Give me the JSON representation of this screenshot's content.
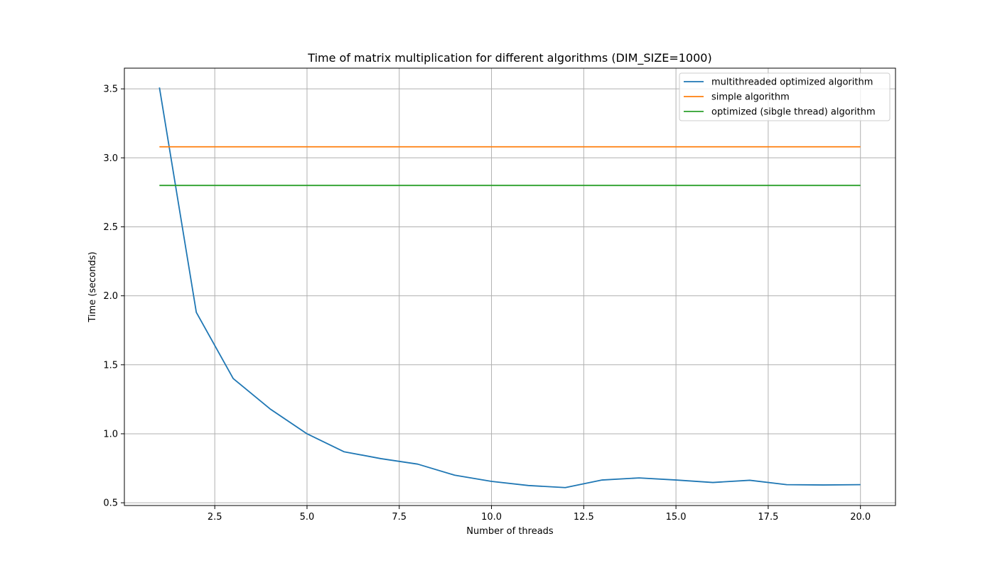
{
  "chart_data": {
    "type": "line",
    "title": "Time of matrix multiplication for different algorithms (DIM_SIZE=1000)",
    "xlabel": "Number of threads",
    "ylabel": "Time (seconds)",
    "xlim": [
      0.05,
      20.95
    ],
    "ylim": [
      0.48,
      3.65
    ],
    "x_ticks": [
      2.5,
      5.0,
      7.5,
      10.0,
      12.5,
      15.0,
      17.5,
      20.0
    ],
    "x_tick_labels": [
      "2.5",
      "5.0",
      "7.5",
      "10.0",
      "12.5",
      "15.0",
      "17.5",
      "20.0"
    ],
    "y_ticks": [
      0.5,
      1.0,
      1.5,
      2.0,
      2.5,
      3.0,
      3.5
    ],
    "y_tick_labels": [
      "0.5",
      "1.0",
      "1.5",
      "2.0",
      "2.5",
      "3.0",
      "3.5"
    ],
    "grid": true,
    "legend_position": "top-right",
    "x": [
      1,
      2,
      3,
      4,
      5,
      6,
      7,
      8,
      9,
      10,
      11,
      12,
      13,
      14,
      15,
      16,
      17,
      18,
      19,
      20
    ],
    "series": [
      {
        "name": "multithreaded optimized algorithm",
        "color": "#1f77b4",
        "values": [
          3.51,
          1.88,
          1.4,
          1.18,
          1.0,
          0.87,
          0.82,
          0.78,
          0.7,
          0.655,
          0.625,
          0.61,
          0.665,
          0.68,
          0.665,
          0.647,
          0.663,
          0.631,
          0.629,
          0.631
        ]
      },
      {
        "name": "simple algorithm",
        "color": "#ff7f0e",
        "values": [
          3.08,
          3.08,
          3.08,
          3.08,
          3.08,
          3.08,
          3.08,
          3.08,
          3.08,
          3.08,
          3.08,
          3.08,
          3.08,
          3.08,
          3.08,
          3.08,
          3.08,
          3.08,
          3.08,
          3.08
        ]
      },
      {
        "name": "optimized (sibgle thread) algorithm",
        "color": "#2ca02c",
        "values": [
          2.8,
          2.8,
          2.8,
          2.8,
          2.8,
          2.8,
          2.8,
          2.8,
          2.8,
          2.8,
          2.8,
          2.8,
          2.8,
          2.8,
          2.8,
          2.8,
          2.8,
          2.8,
          2.8,
          2.8
        ]
      }
    ]
  }
}
